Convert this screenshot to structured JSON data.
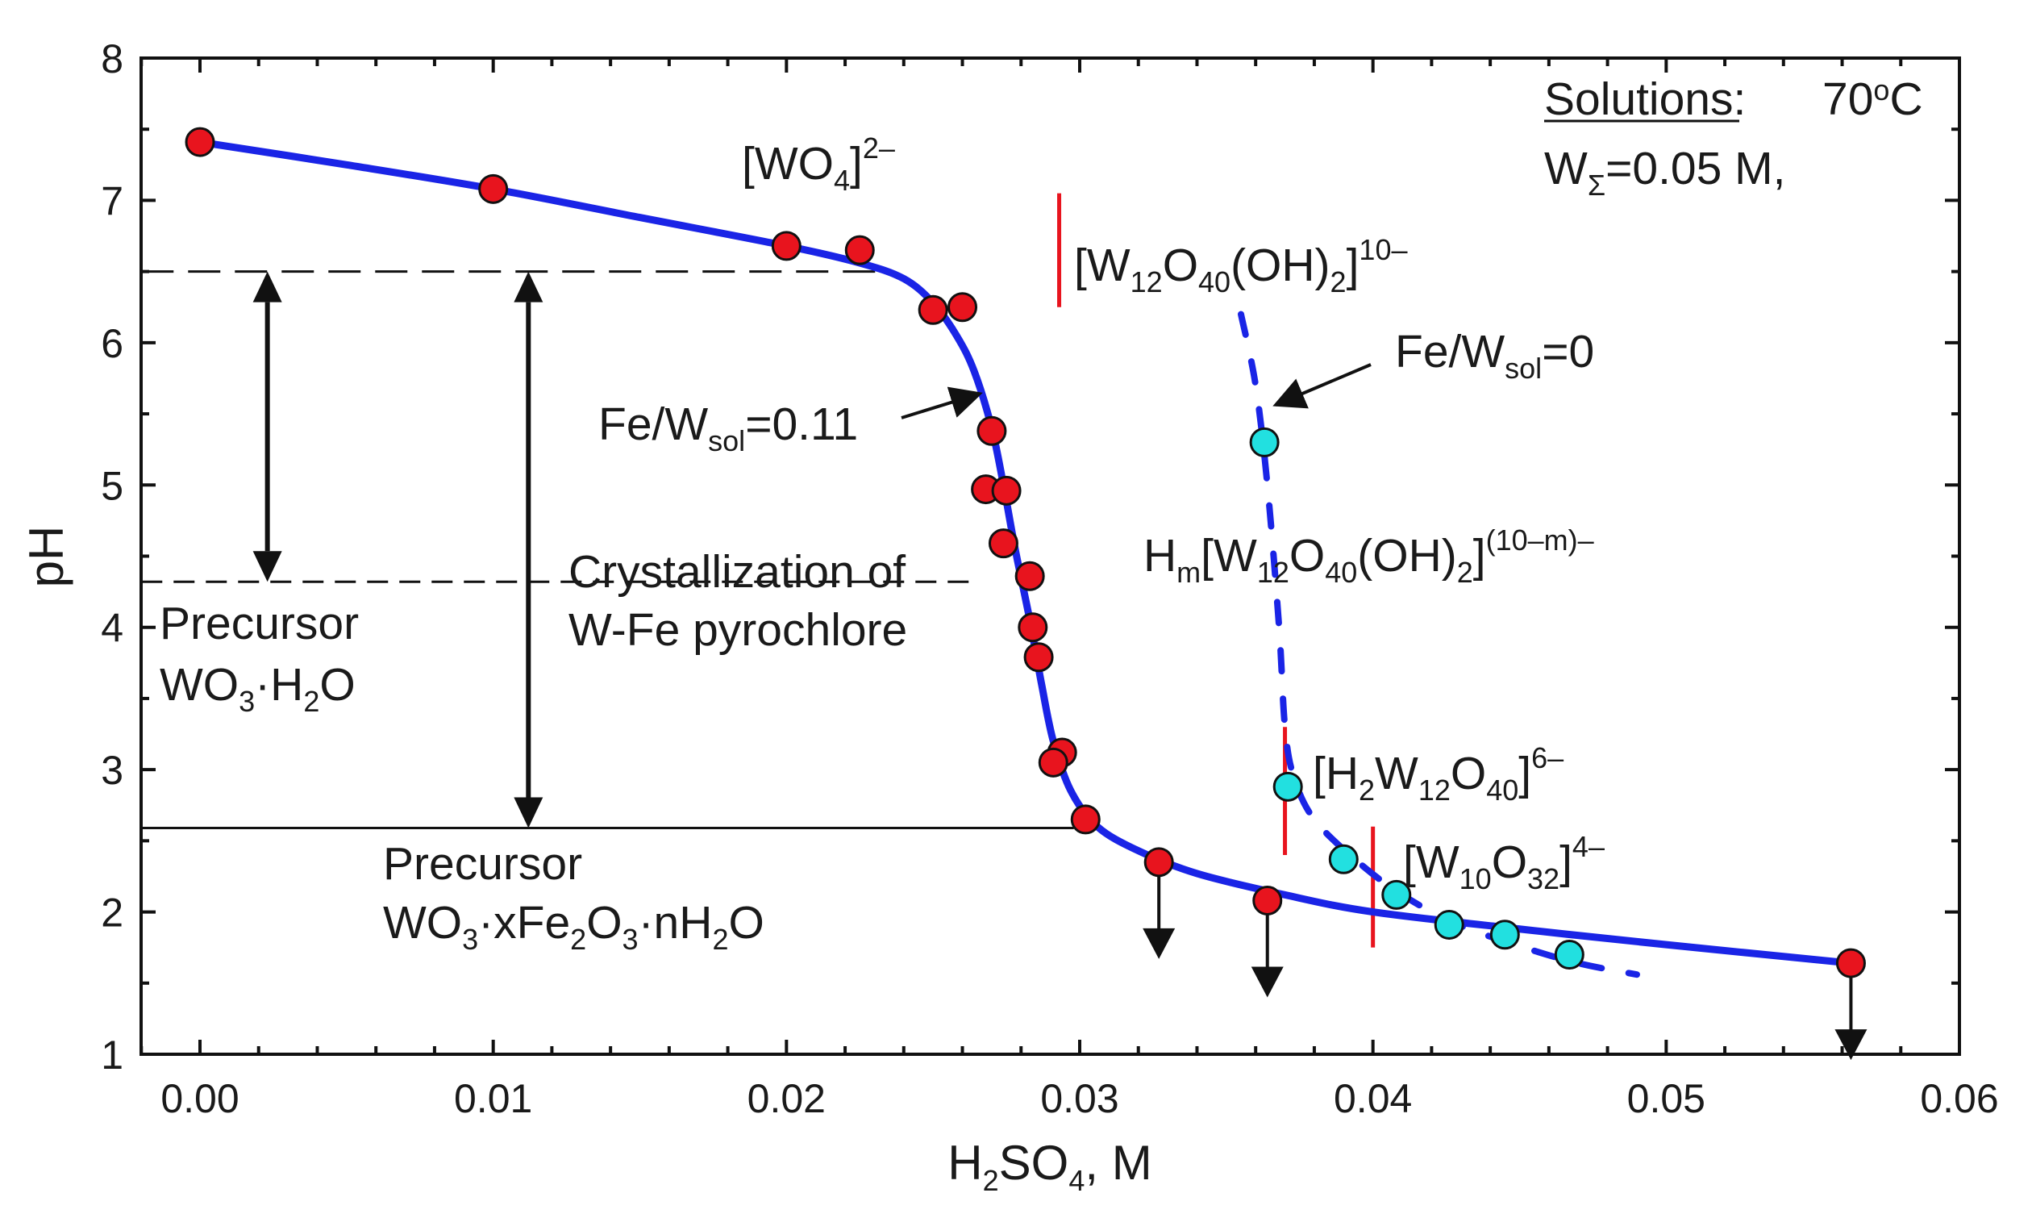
{
  "chart_data": {
    "type": "scatter",
    "xlabel": {
      "base": "H",
      "sub1": "2",
      "mid": "SO",
      "sub2": "4",
      "tail": ", M"
    },
    "ylabel": "pH",
    "xlim": [
      -0.002,
      0.06
    ],
    "ylim": [
      1,
      8
    ],
    "xticks": [
      0.0,
      0.01,
      0.02,
      0.03,
      0.04,
      0.05,
      0.06
    ],
    "xtick_labels": [
      "0.00",
      "0.01",
      "0.02",
      "0.03",
      "0.04",
      "0.05",
      "0.06"
    ],
    "yticks": [
      1,
      2,
      3,
      4,
      5,
      6,
      7,
      8
    ],
    "ytick_labels": [
      "1",
      "2",
      "3",
      "4",
      "5",
      "6",
      "7",
      "8"
    ],
    "series": [
      {
        "name": "Fe/W_sol=0.11",
        "marker_color": "#e8141e",
        "points": [
          [
            0.0,
            7.41
          ],
          [
            0.01,
            7.08
          ],
          [
            0.02,
            6.68
          ],
          [
            0.0225,
            6.65
          ],
          [
            0.025,
            6.23
          ],
          [
            0.026,
            6.25
          ],
          [
            0.027,
            5.38
          ],
          [
            0.0268,
            4.97
          ],
          [
            0.0275,
            4.96
          ],
          [
            0.0274,
            4.59
          ],
          [
            0.0283,
            4.36
          ],
          [
            0.0284,
            4.0
          ],
          [
            0.0286,
            3.79
          ],
          [
            0.0294,
            3.12
          ],
          [
            0.0291,
            3.05
          ],
          [
            0.0302,
            2.65
          ],
          [
            0.0327,
            2.35
          ],
          [
            0.0364,
            2.08
          ],
          [
            0.0563,
            1.64
          ]
        ]
      },
      {
        "name": "Fe/W_sol=0",
        "marker_color": "#22e0e0",
        "points": [
          [
            0.0363,
            5.3
          ],
          [
            0.0371,
            2.88
          ],
          [
            0.039,
            2.37
          ],
          [
            0.0408,
            2.12
          ],
          [
            0.0426,
            1.91
          ],
          [
            0.0445,
            1.84
          ],
          [
            0.0467,
            1.7
          ]
        ]
      }
    ],
    "fit_curves": [
      {
        "name": "fit Fe/W_sol=0.11",
        "style": "solid",
        "color": "#1a24e6",
        "points": [
          [
            0.0,
            7.41
          ],
          [
            0.005,
            7.25
          ],
          [
            0.01,
            7.08
          ],
          [
            0.015,
            6.88
          ],
          [
            0.02,
            6.68
          ],
          [
            0.0225,
            6.56
          ],
          [
            0.024,
            6.45
          ],
          [
            0.025,
            6.28
          ],
          [
            0.0258,
            6.05
          ],
          [
            0.0264,
            5.8
          ],
          [
            0.027,
            5.4
          ],
          [
            0.0274,
            5.0
          ],
          [
            0.0278,
            4.55
          ],
          [
            0.0283,
            4.05
          ],
          [
            0.0287,
            3.6
          ],
          [
            0.0291,
            3.2
          ],
          [
            0.0297,
            2.85
          ],
          [
            0.0306,
            2.6
          ],
          [
            0.032,
            2.43
          ],
          [
            0.034,
            2.27
          ],
          [
            0.037,
            2.12
          ],
          [
            0.04,
            2.0
          ],
          [
            0.045,
            1.88
          ],
          [
            0.05,
            1.77
          ],
          [
            0.0563,
            1.64
          ]
        ]
      },
      {
        "name": "fit Fe/W_sol=0",
        "style": "dashed",
        "color": "#1a24e6",
        "points": [
          [
            0.0355,
            6.2
          ],
          [
            0.036,
            5.7
          ],
          [
            0.0364,
            5.0
          ],
          [
            0.0368,
            4.0
          ],
          [
            0.037,
            3.3
          ],
          [
            0.0373,
            2.95
          ],
          [
            0.038,
            2.65
          ],
          [
            0.0395,
            2.35
          ],
          [
            0.041,
            2.12
          ],
          [
            0.0428,
            1.92
          ],
          [
            0.045,
            1.76
          ],
          [
            0.047,
            1.64
          ],
          [
            0.049,
            1.56
          ]
        ]
      }
    ],
    "down_arrows": [
      {
        "x": 0.0327,
        "y": 2.35
      },
      {
        "x": 0.0364,
        "y": 2.08
      },
      {
        "x": 0.0563,
        "y": 1.64
      }
    ],
    "boundaries": [
      {
        "x": 0.0293,
        "y1": 6.25,
        "y2": 7.05
      },
      {
        "x": 0.037,
        "y1": 2.4,
        "y2": 3.3
      },
      {
        "x": 0.04,
        "y1": 1.75,
        "y2": 2.6
      }
    ],
    "reference_lines": [
      {
        "y": 6.5,
        "x1": -0.002,
        "x2": 0.0235,
        "style": "long-dash"
      },
      {
        "y": 4.32,
        "x1": -0.002,
        "x2": 0.0265,
        "style": "dash"
      },
      {
        "y": 2.59,
        "x1": -0.002,
        "x2": 0.0298,
        "style": "solid"
      }
    ],
    "double_arrows": [
      {
        "x": 0.0023,
        "y1": 6.5,
        "y2": 4.32
      },
      {
        "x": 0.0112,
        "y1": 6.5,
        "y2": 2.59
      }
    ],
    "annotations": {
      "solutions_word": "Solutions",
      "solutions_colon": ":",
      "temp_value": "70",
      "temp_sup": "o",
      "temp_unit": "C",
      "w_total": {
        "base": "W",
        "sub": "Σ",
        "tail": "=0.05 M,"
      },
      "wo4": {
        "open": "[WO",
        "sub": "4",
        "close": "]",
        "sup": "2–"
      },
      "w12_10": {
        "open": "[W",
        "sub1": "12",
        "mid1": "O",
        "sub2": "40",
        "mid2": "(OH)",
        "sub3": "2",
        "close": "]",
        "sup": "10–"
      },
      "fe_w_0": {
        "base": "Fe/W",
        "sub": "sol",
        "tail": "=0"
      },
      "fe_w_011": {
        "base": "Fe/W",
        "sub": "sol",
        "tail": "=0.11"
      },
      "hm": {
        "base": "H",
        "sub0": "m",
        "open": "[W",
        "sub1": "12",
        "mid1": "O",
        "sub2": "40",
        "mid2": "(OH)",
        "sub3": "2",
        "close": "]",
        "sup": "(10–m)–"
      },
      "h2w12": {
        "open": "[H",
        "sub1": "2",
        "mid1": "W",
        "sub2": "12",
        "mid2": "O",
        "sub3": "40",
        "close": "]",
        "sup": "6–"
      },
      "w10": {
        "open": "[W",
        "sub1": "10",
        "mid1": "O",
        "sub2": "32",
        "close": "]",
        "sup": "4–"
      },
      "cryst_line1": "Crystallization of",
      "cryst_line2": "W-Fe pyrochlore",
      "prec1_line1": "Precursor",
      "prec1_line2": {
        "a": "WO",
        "sub": "3",
        "b": "·H",
        "sub2": "2",
        "c": "O"
      },
      "prec2_line1": "Precursor",
      "prec2_line2": {
        "a": "WO",
        "s1": "3",
        "b": "·xFe",
        "s2": "2",
        "c": "O",
        "s3": "3",
        "d": "·nH",
        "s4": "2",
        "e": "O"
      }
    }
  }
}
